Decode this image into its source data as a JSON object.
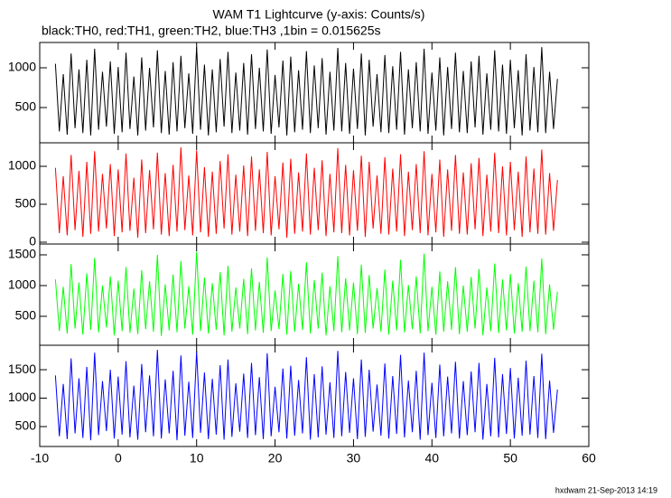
{
  "chart_data": [
    {
      "type": "line",
      "title": "WAM T1 Lightcurve (y-axis: Counts/s)",
      "subtitle": "black:TH0, red:TH1, green:TH2, blue:TH3 ,1bin = 0.015625s",
      "color": "#000000",
      "xlim": [
        -10,
        60
      ],
      "ylim": [
        57,
        1318
      ],
      "yticks": [
        500,
        1000
      ],
      "x": [
        -8,
        -7.5,
        -7,
        -6.5,
        -6,
        -5.5,
        -5,
        -4.5,
        -4,
        -3.5,
        -3,
        -2.5,
        -2,
        -1.5,
        -1,
        -0.5,
        0,
        0.5,
        1,
        1.5,
        2,
        2.5,
        3,
        3.5,
        4,
        4.5,
        5,
        5.5,
        6,
        6.5,
        7,
        7.5,
        8,
        8.5,
        9,
        9.5,
        10,
        10.5,
        11,
        11.5,
        12,
        12.5,
        13,
        13.5,
        14,
        14.5,
        15,
        15.5,
        16,
        16.5,
        17,
        17.5,
        18,
        18.5,
        19,
        19.5,
        20,
        20.5,
        21,
        21.5,
        22,
        22.5,
        23,
        23.5,
        24,
        24.5,
        25,
        25.5,
        26,
        26.5,
        27,
        27.5,
        28,
        28.5,
        29,
        29.5,
        30,
        30.5,
        31,
        31.5,
        32,
        32.5,
        33,
        33.5,
        34,
        34.5,
        35,
        35.5,
        36,
        36.5,
        37,
        37.5,
        38,
        38.5,
        39,
        39.5,
        40,
        40.5,
        41,
        41.5,
        42,
        42.5,
        43,
        43.5,
        44,
        44.5,
        45,
        45.5,
        46,
        46.5,
        47,
        47.5,
        48,
        48.5,
        49,
        49.5,
        50,
        50.5,
        51,
        51.5,
        52,
        52.5,
        53,
        53.5,
        54,
        54.5,
        55,
        55.5,
        56
      ],
      "values": [
        1050,
        200,
        920,
        160,
        1180,
        240,
        980,
        180,
        1100,
        150,
        1240,
        220,
        950,
        260,
        1080,
        170,
        1010,
        190,
        1190,
        230,
        890,
        150,
        1130,
        210,
        1000,
        250,
        1220,
        180,
        960,
        160,
        1070,
        200,
        1150,
        240,
        930,
        170,
        1260,
        220,
        1040,
        150,
        980,
        190,
        1110,
        260,
        1200,
        180,
        940,
        210,
        1060,
        160,
        1170,
        230,
        1000,
        200,
        1230,
        170,
        910,
        250,
        1090,
        150,
        1140,
        190,
        970,
        220,
        1210,
        180,
        1030,
        240,
        1120,
        160,
        950,
        210,
        1250,
        200,
        1060,
        170,
        990,
        230,
        1180,
        150,
        1100,
        260,
        920,
        190,
        1160,
        180,
        1020,
        220,
        1200,
        160,
        980,
        240,
        1070,
        200,
        1240,
        170,
        940,
        210,
        1130,
        150,
        1010,
        230,
        1190,
        190,
        960,
        180,
        1080,
        250,
        1150,
        160,
        930,
        220,
        1220,
        200,
        1040,
        170,
        1100,
        240,
        970,
        150,
        1170,
        210,
        1010,
        190,
        1260,
        180,
        950,
        230,
        860
      ]
    },
    {
      "type": "line",
      "color": "#ff0000",
      "xlim": [
        -10,
        60
      ],
      "ylim": [
        -24,
        1310
      ],
      "yticks": [
        0,
        500,
        1000
      ],
      "x": [
        -8,
        -7.5,
        -7,
        -6.5,
        -6,
        -5.5,
        -5,
        -4.5,
        -4,
        -3.5,
        -3,
        -2.5,
        -2,
        -1.5,
        -1,
        -0.5,
        0,
        0.5,
        1,
        1.5,
        2,
        2.5,
        3,
        3.5,
        4,
        4.5,
        5,
        5.5,
        6,
        6.5,
        7,
        7.5,
        8,
        8.5,
        9,
        9.5,
        10,
        10.5,
        11,
        11.5,
        12,
        12.5,
        13,
        13.5,
        14,
        14.5,
        15,
        15.5,
        16,
        16.5,
        17,
        17.5,
        18,
        18.5,
        19,
        19.5,
        20,
        20.5,
        21,
        21.5,
        22,
        22.5,
        23,
        23.5,
        24,
        24.5,
        25,
        25.5,
        26,
        26.5,
        27,
        27.5,
        28,
        28.5,
        29,
        29.5,
        30,
        30.5,
        31,
        31.5,
        32,
        32.5,
        33,
        33.5,
        34,
        34.5,
        35,
        35.5,
        36,
        36.5,
        37,
        37.5,
        38,
        38.5,
        39,
        39.5,
        40,
        40.5,
        41,
        41.5,
        42,
        42.5,
        43,
        43.5,
        44,
        44.5,
        45,
        45.5,
        46,
        46.5,
        47,
        47.5,
        48,
        48.5,
        49,
        49.5,
        50,
        50.5,
        51,
        51.5,
        52,
        52.5,
        53,
        53.5,
        54,
        54.5,
        55,
        55.5,
        56
      ],
      "values": [
        980,
        120,
        870,
        90,
        1150,
        160,
        940,
        70,
        1060,
        110,
        1200,
        140,
        900,
        180,
        1030,
        80,
        960,
        130,
        1170,
        150,
        850,
        60,
        1090,
        120,
        950,
        170,
        1180,
        100,
        910,
        80,
        1020,
        140,
        1250,
        160,
        880,
        90,
        1210,
        130,
        990,
        70,
        930,
        110,
        1070,
        180,
        1160,
        100,
        890,
        140,
        1010,
        80,
        1130,
        150,
        960,
        120,
        1190,
        90,
        870,
        170,
        1050,
        60,
        1100,
        110,
        920,
        140,
        1170,
        100,
        980,
        160,
        1080,
        80,
        900,
        130,
        1240,
        120,
        1020,
        90,
        950,
        150,
        1140,
        70,
        1060,
        180,
        880,
        110,
        1120,
        100,
        970,
        140,
        1160,
        80,
        930,
        160,
        1030,
        120,
        1200,
        90,
        900,
        130,
        1090,
        70,
        960,
        150,
        1150,
        110,
        920,
        100,
        1040,
        170,
        1110,
        80,
        890,
        140,
        1180,
        120,
        1000,
        90,
        1060,
        160,
        930,
        70,
        1130,
        130,
        970,
        110,
        1220,
        100,
        910,
        150,
        820
      ]
    },
    {
      "type": "line",
      "color": "#00ff00",
      "xlim": [
        -10,
        60
      ],
      "ylim": [
        29,
        1676
      ],
      "yticks": [
        500,
        1000,
        1500
      ],
      "x": [
        -8,
        -7.5,
        -7,
        -6.5,
        -6,
        -5.5,
        -5,
        -4.5,
        -4,
        -3.5,
        -3,
        -2.5,
        -2,
        -1.5,
        -1,
        -0.5,
        0,
        0.5,
        1,
        1.5,
        2,
        2.5,
        3,
        3.5,
        4,
        4.5,
        5,
        5.5,
        6,
        6.5,
        7,
        7.5,
        8,
        8.5,
        9,
        9.5,
        10,
        10.5,
        11,
        11.5,
        12,
        12.5,
        13,
        13.5,
        14,
        14.5,
        15,
        15.5,
        16,
        16.5,
        17,
        17.5,
        18,
        18.5,
        19,
        19.5,
        20,
        20.5,
        21,
        21.5,
        22,
        22.5,
        23,
        23.5,
        24,
        24.5,
        25,
        25.5,
        26,
        26.5,
        27,
        27.5,
        28,
        28.5,
        29,
        29.5,
        30,
        30.5,
        31,
        31.5,
        32,
        32.5,
        33,
        33.5,
        34,
        34.5,
        35,
        35.5,
        36,
        36.5,
        37,
        37.5,
        38,
        38.5,
        39,
        39.5,
        40,
        40.5,
        41,
        41.5,
        42,
        42.5,
        43,
        43.5,
        44,
        44.5,
        45,
        45.5,
        46,
        46.5,
        47,
        47.5,
        48,
        48.5,
        49,
        49.5,
        50,
        50.5,
        51,
        51.5,
        52,
        52.5,
        53,
        53.5,
        54,
        54.5,
        55,
        55.5,
        56
      ],
      "values": [
        1100,
        260,
        980,
        220,
        1350,
        300,
        1050,
        200,
        1200,
        280,
        1450,
        240,
        1000,
        320,
        1150,
        190,
        1080,
        260,
        1300,
        230,
        950,
        210,
        1250,
        290,
        1070,
        250,
        1500,
        180,
        1020,
        270,
        1180,
        240,
        1400,
        300,
        990,
        200,
        1550,
        260,
        1130,
        220,
        1040,
        280,
        1220,
        190,
        1320,
        250,
        970,
        300,
        1110,
        210,
        1280,
        270,
        1060,
        230,
        1460,
        260,
        920,
        290,
        1190,
        200,
        1240,
        250,
        1030,
        280,
        1380,
        220,
        1090,
        300,
        1210,
        190,
        990,
        260,
        1480,
        240,
        1120,
        270,
        1050,
        210,
        1340,
        230,
        1170,
        300,
        960,
        250,
        1260,
        200,
        1080,
        270,
        1420,
        240,
        1010,
        290,
        1150,
        220,
        1520,
        260,
        980,
        200,
        1230,
        250,
        1070,
        280,
        1300,
        210,
        1000,
        250,
        1140,
        300,
        1270,
        190,
        970,
        260,
        1360,
        230,
        1100,
        270,
        1190,
        220,
        1040,
        250,
        1310,
        260,
        1080,
        240,
        1440,
        210,
        1020,
        280,
        900
      ]
    },
    {
      "type": "line",
      "color": "#0000ff",
      "xlim": [
        -10,
        60
      ],
      "ylim": [
        150,
        1930
      ],
      "yticks": [
        500,
        1000,
        1500
      ],
      "xticks": [
        -10,
        0,
        10,
        20,
        30,
        40,
        50,
        60
      ],
      "footnote": "hxdwam 21-Sep-2013 14:19",
      "x": [
        -8,
        -7.5,
        -7,
        -6.5,
        -6,
        -5.5,
        -5,
        -4.5,
        -4,
        -3.5,
        -3,
        -2.5,
        -2,
        -1.5,
        -1,
        -0.5,
        0,
        0.5,
        1,
        1.5,
        2,
        2.5,
        3,
        3.5,
        4,
        4.5,
        5,
        5.5,
        6,
        6.5,
        7,
        7.5,
        8,
        8.5,
        9,
        9.5,
        10,
        10.5,
        11,
        11.5,
        12,
        12.5,
        13,
        13.5,
        14,
        14.5,
        15,
        15.5,
        16,
        16.5,
        17,
        17.5,
        18,
        18.5,
        19,
        19.5,
        20,
        20.5,
        21,
        21.5,
        22,
        22.5,
        23,
        23.5,
        24,
        24.5,
        25,
        25.5,
        26,
        26.5,
        27,
        27.5,
        28,
        28.5,
        29,
        29.5,
        30,
        30.5,
        31,
        31.5,
        32,
        32.5,
        33,
        33.5,
        34,
        34.5,
        35,
        35.5,
        36,
        36.5,
        37,
        37.5,
        38,
        38.5,
        39,
        39.5,
        40,
        40.5,
        41,
        41.5,
        42,
        42.5,
        43,
        43.5,
        44,
        44.5,
        45,
        45.5,
        46,
        46.5,
        47,
        47.5,
        48,
        48.5,
        49,
        49.5,
        50,
        50.5,
        51,
        51.5,
        52,
        52.5,
        53,
        53.5,
        54,
        54.5,
        55,
        55.5,
        56
      ],
      "values": [
        1400,
        330,
        1250,
        280,
        1700,
        380,
        1350,
        300,
        1550,
        260,
        1800,
        350,
        1300,
        420,
        1500,
        290,
        1380,
        360,
        1650,
        310,
        1220,
        270,
        1600,
        400,
        1400,
        330,
        1850,
        290,
        1330,
        380,
        1480,
        260,
        1750,
        340,
        1290,
        300,
        1820,
        390,
        1450,
        280,
        1340,
        360,
        1580,
        270,
        1680,
        320,
        1260,
        410,
        1430,
        300,
        1620,
        350,
        1370,
        280,
        1790,
        330,
        1200,
        400,
        1520,
        290,
        1570,
        340,
        1320,
        380,
        1720,
        270,
        1420,
        310,
        1560,
        360,
        1280,
        300,
        1830,
        330,
        1460,
        390,
        1350,
        280,
        1680,
        320,
        1500,
        410,
        1240,
        340,
        1610,
        290,
        1390,
        370,
        1760,
        310,
        1310,
        400,
        1480,
        270,
        1800,
        350,
        1270,
        300,
        1590,
        330,
        1380,
        380,
        1640,
        290,
        1300,
        350,
        1470,
        400,
        1620,
        270,
        1250,
        330,
        1710,
        310,
        1420,
        370,
        1530,
        290,
        1360,
        340,
        1660,
        360,
        1390,
        300,
        1780,
        280,
        1310,
        390,
        1150
      ]
    }
  ]
}
